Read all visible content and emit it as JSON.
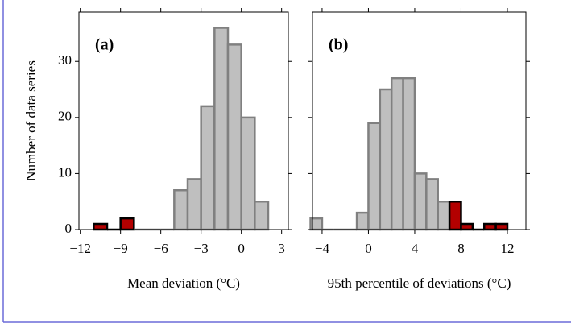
{
  "chart_data": [
    {
      "type": "histogram",
      "panel_label": "(a)",
      "xlabel": "Mean deviation (°C)",
      "ylabel": "Number of data series",
      "bins": [
        -11,
        -10,
        -9,
        -8,
        -7,
        -6,
        -5,
        -4,
        -3,
        -2,
        -1,
        0,
        1,
        2
      ],
      "counts": [
        1,
        0,
        2,
        0,
        0,
        0,
        7,
        9,
        22,
        36,
        33,
        20,
        5
      ],
      "highlighted": [
        true,
        true,
        true,
        false,
        false,
        false,
        false,
        false,
        false,
        false,
        false,
        false,
        false
      ],
      "color": "#bfbfbf",
      "edgecolor": "#808080",
      "highlight_color": "#b30000",
      "highlight_edgecolor": "#000000",
      "xlim": [
        -12.1,
        3.5
      ],
      "xticks": [
        {
          "value": -12,
          "label": "−12"
        },
        {
          "value": -9,
          "label": "−9"
        },
        {
          "value": -6,
          "label": "−6"
        },
        {
          "value": -3,
          "label": "−3"
        },
        0,
        3
      ],
      "ylim": [
        0,
        38.8
      ],
      "yticks": [
        0,
        10,
        20,
        30
      ],
      "ytick_labels": true
    },
    {
      "type": "histogram",
      "panel_label": "(b)",
      "xlabel": "95th percentile of deviations (°C)",
      "bins": [
        -5,
        -4,
        -3,
        -2,
        -1,
        0,
        1,
        2,
        3,
        4,
        5,
        6,
        7,
        8,
        9,
        10,
        11,
        12
      ],
      "counts": [
        2,
        0,
        0,
        0,
        3,
        19,
        25,
        27,
        27,
        10,
        9,
        5,
        5,
        1,
        0,
        1,
        1
      ],
      "highlighted": [
        false,
        false,
        false,
        false,
        false,
        false,
        false,
        false,
        false,
        false,
        false,
        false,
        true,
        true,
        true,
        true,
        true
      ],
      "color": "#bfbfbf",
      "edgecolor": "#808080",
      "highlight_color": "#b30000",
      "highlight_edgecolor": "#000000",
      "xlim": [
        -4.83,
        13.6
      ],
      "xticks": [
        {
          "value": -4,
          "label": "−4"
        },
        0,
        4,
        8,
        12
      ],
      "ylim": [
        0,
        38.8
      ],
      "yticks": [
        0,
        10,
        20,
        30
      ],
      "ytick_labels": false
    }
  ]
}
